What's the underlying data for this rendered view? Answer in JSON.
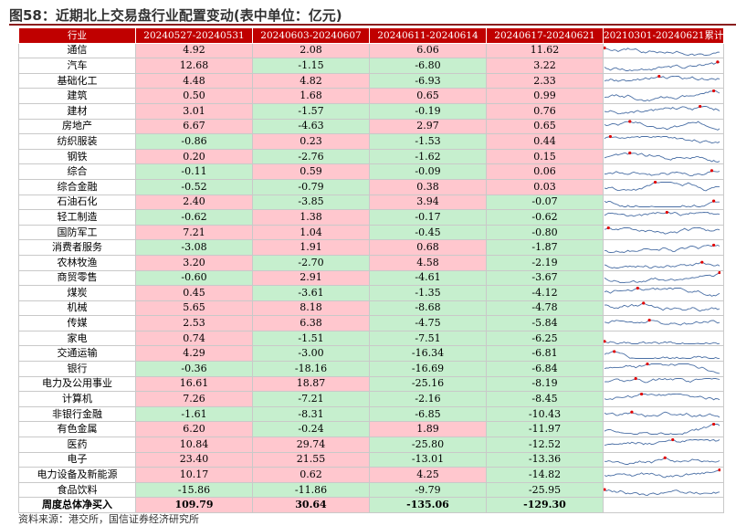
{
  "title": "图58：近期北上交易盘行业配置变动(表中单位：亿元)",
  "source": "资料来源：港交所，国信证券经济研究所",
  "headers": [
    "行业",
    "20240527-20240531",
    "20240603-20240607",
    "20240611-20240614",
    "20240617-20240621",
    "20210301-20240621累计"
  ],
  "colors": {
    "header": "#c00000",
    "positive": "#ffc7ce",
    "negative": "#c6efce",
    "spark": "#4a6fa5",
    "spark_max": "#e00000"
  },
  "rows": [
    {
      "name": "通信",
      "values": [
        "4.92",
        "2.08",
        "6.06",
        "11.62"
      ]
    },
    {
      "name": "汽车",
      "values": [
        "12.68",
        "-1.15",
        "-6.80",
        "3.22"
      ]
    },
    {
      "name": "基础化工",
      "values": [
        "4.48",
        "4.82",
        "-6.93",
        "2.33"
      ]
    },
    {
      "name": "建筑",
      "values": [
        "0.50",
        "1.68",
        "0.65",
        "0.99"
      ]
    },
    {
      "name": "建材",
      "values": [
        "3.01",
        "-1.57",
        "-0.19",
        "0.76"
      ]
    },
    {
      "name": "房地产",
      "values": [
        "6.67",
        "-4.63",
        "2.97",
        "0.65"
      ]
    },
    {
      "name": "纺织服装",
      "values": [
        "-0.86",
        "0.23",
        "-1.53",
        "0.44"
      ]
    },
    {
      "name": "钢铁",
      "values": [
        "0.20",
        "-2.76",
        "-1.62",
        "0.15"
      ]
    },
    {
      "name": "综合",
      "values": [
        "-0.11",
        "0.59",
        "-0.09",
        "0.06"
      ]
    },
    {
      "name": "综合金融",
      "values": [
        "-0.52",
        "-0.79",
        "0.38",
        "0.03"
      ]
    },
    {
      "name": "石油石化",
      "values": [
        "2.40",
        "-3.85",
        "3.94",
        "-0.07"
      ]
    },
    {
      "name": "轻工制造",
      "values": [
        "-0.62",
        "1.38",
        "-0.17",
        "-0.62"
      ]
    },
    {
      "name": "国防军工",
      "values": [
        "7.21",
        "1.04",
        "-0.45",
        "-0.80"
      ]
    },
    {
      "name": "消费者服务",
      "values": [
        "-3.08",
        "1.91",
        "0.68",
        "-1.87"
      ]
    },
    {
      "name": "农林牧渔",
      "values": [
        "3.20",
        "-2.70",
        "4.58",
        "-2.19"
      ]
    },
    {
      "name": "商贸零售",
      "values": [
        "-0.60",
        "2.91",
        "-4.61",
        "-3.67"
      ]
    },
    {
      "name": "煤炭",
      "values": [
        "0.45",
        "-3.61",
        "-1.35",
        "-4.12"
      ]
    },
    {
      "name": "机械",
      "values": [
        "5.65",
        "8.18",
        "-8.68",
        "-4.78"
      ]
    },
    {
      "name": "传媒",
      "values": [
        "2.53",
        "6.38",
        "-4.75",
        "-5.84"
      ]
    },
    {
      "name": "家电",
      "values": [
        "0.74",
        "-1.51",
        "-7.51",
        "-6.25"
      ]
    },
    {
      "name": "交通运输",
      "values": [
        "4.29",
        "-3.00",
        "-16.34",
        "-6.81"
      ]
    },
    {
      "name": "银行",
      "values": [
        "-0.36",
        "-18.16",
        "-16.69",
        "-6.84"
      ]
    },
    {
      "name": "电力及公用事业",
      "values": [
        "16.61",
        "18.87",
        "-25.16",
        "-8.19"
      ]
    },
    {
      "name": "计算机",
      "values": [
        "7.26",
        "-7.21",
        "-2.16",
        "-8.45"
      ]
    },
    {
      "name": "非银行金融",
      "values": [
        "-1.61",
        "-8.31",
        "-6.85",
        "-10.43"
      ]
    },
    {
      "name": "有色金属",
      "values": [
        "6.20",
        "-0.24",
        "1.89",
        "-11.97"
      ]
    },
    {
      "name": "医药",
      "values": [
        "10.84",
        "29.74",
        "-25.80",
        "-12.52"
      ]
    },
    {
      "name": "电子",
      "values": [
        "23.40",
        "21.55",
        "-13.01",
        "-13.36"
      ]
    },
    {
      "name": "电力设备及新能源",
      "values": [
        "10.17",
        "0.62",
        "4.25",
        "-14.82"
      ]
    },
    {
      "name": "食品饮料",
      "values": [
        "-15.86",
        "-11.86",
        "-9.79",
        "-25.95"
      ]
    }
  ],
  "total": {
    "name": "周度总体净买入",
    "values": [
      "109.79",
      "30.64",
      "-135.06",
      "-129.30"
    ]
  }
}
